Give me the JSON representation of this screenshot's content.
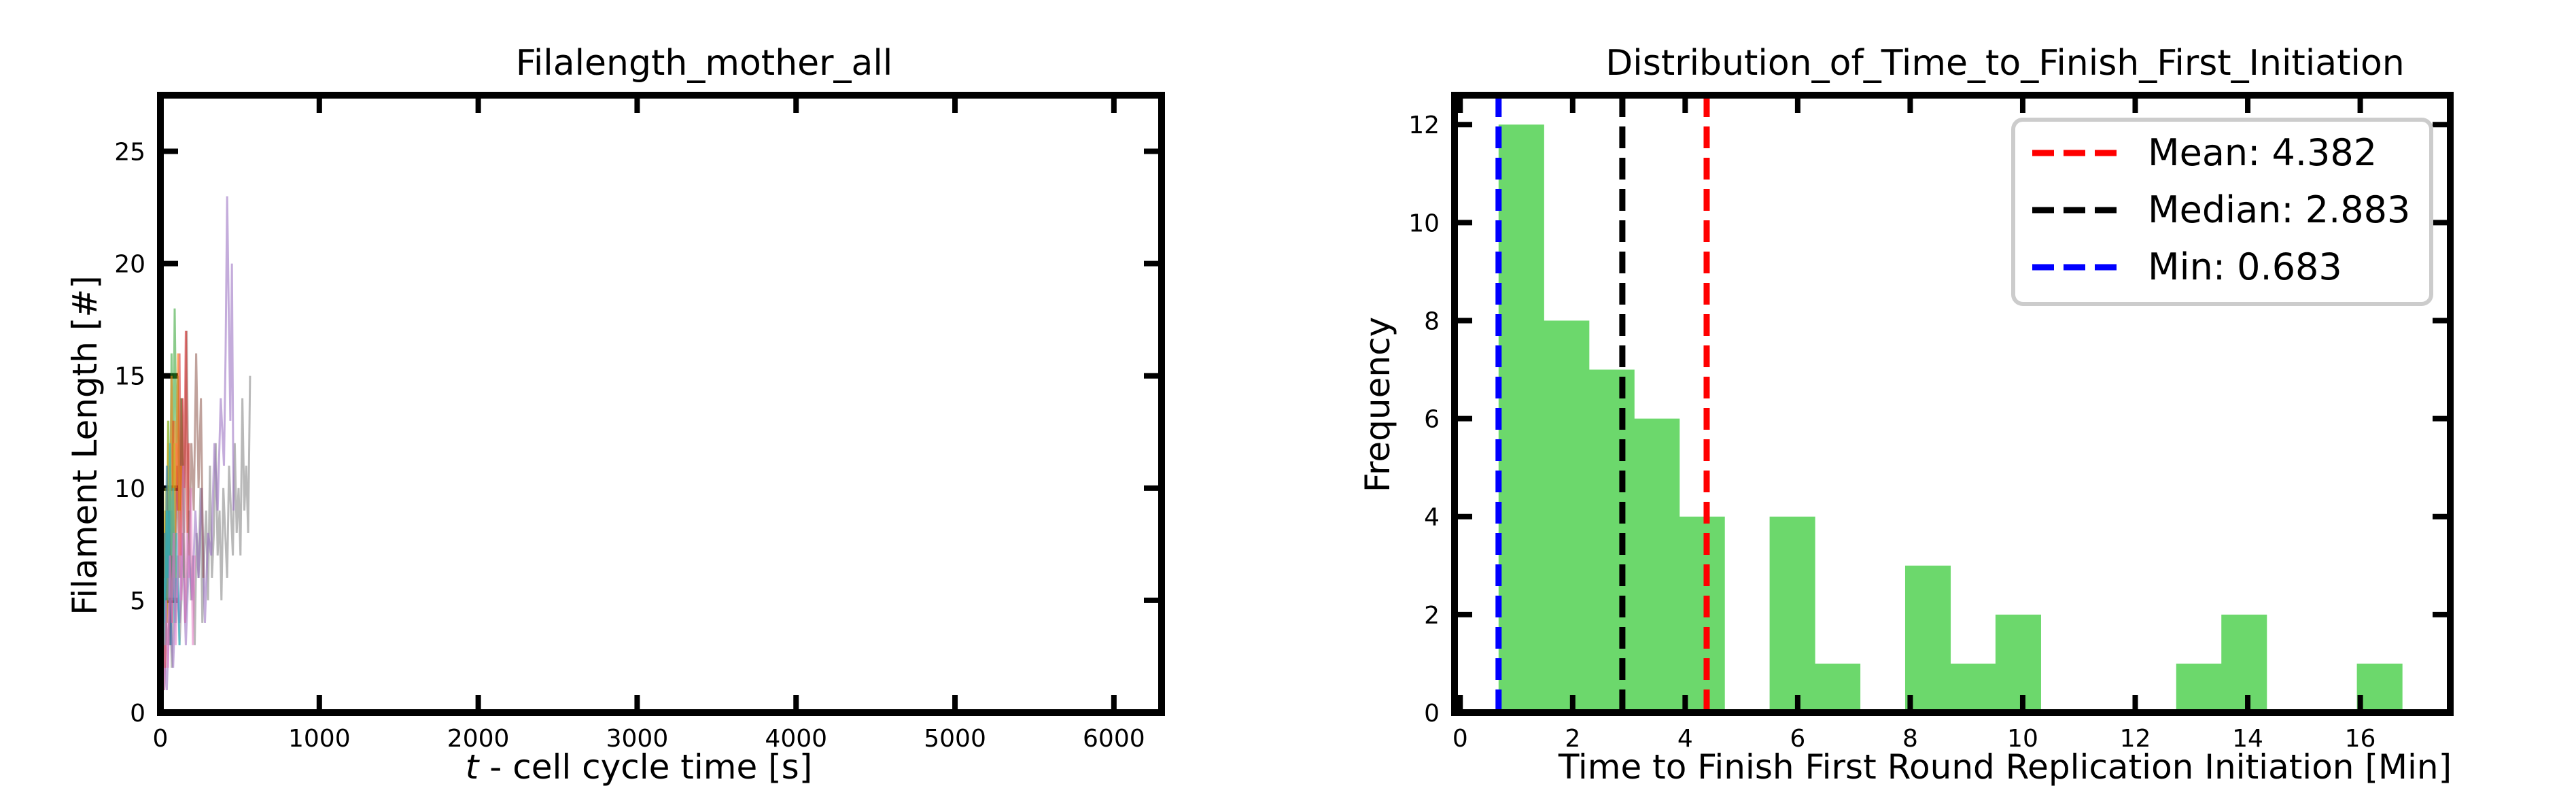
{
  "chart_data": [
    {
      "type": "line",
      "title": "Filalength_mother_all",
      "xlabel": "t - cell cycle time [s]",
      "xlabel_italic_part": "t",
      "xlabel_rest": " - cell cycle time [s]",
      "ylabel": "Filament Length [#]",
      "xlim": [
        0,
        6300
      ],
      "ylim": [
        0,
        27.5
      ],
      "x_ticks": [
        0,
        1000,
        2000,
        3000,
        4000,
        5000,
        6000
      ],
      "x_tick_labels": [
        "0",
        "1000",
        "2000",
        "3000",
        "4000",
        "5000",
        "6000"
      ],
      "y_ticks": [
        0,
        5,
        10,
        15,
        20,
        25
      ],
      "y_tick_labels": [
        "0",
        "5",
        "10",
        "15",
        "20",
        "25"
      ],
      "grid": false,
      "series": [
        {
          "color": "#7f7f7f",
          "x": [
            0,
            12,
            24,
            36,
            48,
            60,
            72,
            84,
            96,
            108,
            120,
            132,
            144,
            156,
            168,
            180,
            192,
            204,
            216,
            228,
            240,
            252,
            264,
            276,
            288,
            300,
            312,
            324,
            336,
            348,
            360,
            372,
            384,
            396,
            408,
            420,
            432,
            444,
            456,
            468,
            480,
            492,
            504,
            516,
            528,
            540,
            552,
            564
          ],
          "values": [
            0,
            2,
            1,
            4,
            3,
            5,
            2,
            6,
            4,
            7,
            3,
            5,
            8,
            4,
            6,
            9,
            5,
            7,
            3,
            8,
            6,
            10,
            4,
            7,
            9,
            5,
            11,
            6,
            8,
            12,
            7,
            9,
            5,
            10,
            8,
            6,
            11,
            9,
            7,
            12,
            8,
            10,
            7,
            14,
            9,
            11,
            8,
            15
          ]
        },
        {
          "color": "#9467bd",
          "x": [
            0,
            20,
            40,
            60,
            80,
            100,
            120,
            140,
            160,
            180,
            200,
            220,
            240,
            260,
            280,
            300,
            320,
            340,
            360,
            380,
            400,
            410,
            420,
            430,
            440,
            450,
            460
          ],
          "values": [
            0,
            3,
            1,
            5,
            2,
            6,
            4,
            8,
            3,
            7,
            5,
            9,
            6,
            10,
            4,
            8,
            7,
            12,
            9,
            14,
            11,
            16,
            23,
            18,
            13,
            20,
            9
          ]
        },
        {
          "color": "#8c564b",
          "x": [
            0,
            15,
            30,
            45,
            60,
            75,
            90,
            105,
            120,
            135,
            150,
            165,
            180,
            195,
            210,
            225,
            240,
            255,
            270
          ],
          "values": [
            0,
            4,
            2,
            7,
            3,
            9,
            5,
            11,
            6,
            14,
            8,
            17,
            7,
            12,
            9,
            16,
            10,
            14,
            6
          ]
        },
        {
          "color": "#2ca02c",
          "x": [
            0,
            10,
            20,
            30,
            40,
            50,
            60,
            70,
            80,
            90,
            100,
            110,
            120,
            130,
            140,
            150
          ],
          "values": [
            0,
            6,
            2,
            9,
            4,
            13,
            7,
            16,
            10,
            18,
            12,
            15,
            8,
            14,
            11,
            6
          ]
        },
        {
          "color": "#d62728",
          "x": [
            0,
            10,
            20,
            30,
            40,
            50,
            60,
            70,
            80,
            90,
            100,
            110,
            120,
            130,
            140,
            150,
            160,
            170,
            180
          ],
          "values": [
            0,
            3,
            7,
            2,
            8,
            5,
            11,
            4,
            13,
            6,
            12,
            9,
            16,
            7,
            14,
            10,
            17,
            8,
            12
          ]
        },
        {
          "color": "#ff7f0e",
          "x": [
            0,
            10,
            20,
            30,
            40,
            50,
            60,
            70,
            80,
            90,
            100,
            110,
            120,
            130
          ],
          "values": [
            0,
            5,
            2,
            9,
            4,
            12,
            6,
            15,
            8,
            13,
            10,
            16,
            7,
            11
          ]
        },
        {
          "color": "#bcbd22",
          "x": [
            0,
            8,
            16,
            24,
            32,
            40,
            48,
            56,
            64,
            72,
            80,
            88,
            96
          ],
          "values": [
            0,
            4,
            8,
            3,
            10,
            6,
            13,
            7,
            11,
            5,
            9,
            12,
            6
          ]
        },
        {
          "color": "#1f77b4",
          "x": [
            0,
            8,
            16,
            24,
            32,
            40,
            48,
            56,
            64,
            72,
            80
          ],
          "values": [
            0,
            5,
            2,
            8,
            4,
            11,
            6,
            9,
            3,
            7,
            5
          ]
        },
        {
          "color": "#17becf",
          "x": [
            0,
            10,
            20,
            30,
            40,
            50,
            60,
            70,
            80,
            90,
            100,
            110,
            120
          ],
          "values": [
            0,
            2,
            6,
            3,
            9,
            5,
            12,
            7,
            10,
            4,
            8,
            6,
            3
          ]
        },
        {
          "color": "#e377c2",
          "x": [
            0,
            12,
            24,
            36,
            48,
            60,
            72,
            84,
            96,
            108,
            120,
            132,
            144,
            156,
            168,
            180,
            192,
            204,
            216
          ],
          "values": [
            0,
            3,
            1,
            5,
            2,
            7,
            4,
            8,
            3,
            6,
            9,
            5,
            11,
            4,
            8,
            6,
            10,
            3,
            7
          ]
        }
      ]
    },
    {
      "type": "bar",
      "title": "Distribution_of_Time_to_Finish_First_Initiation",
      "xlabel": "Time to Finish First Round Replication Initiation [Min]",
      "ylabel": "Frequency",
      "xlim": [
        -0.1,
        17.6
      ],
      "ylim": [
        0,
        12.6
      ],
      "x_ticks": [
        0,
        2,
        4,
        6,
        8,
        10,
        12,
        14,
        16
      ],
      "x_tick_labels": [
        "0",
        "2",
        "4",
        "6",
        "8",
        "10",
        "12",
        "14",
        "16"
      ],
      "y_ticks": [
        0,
        2,
        4,
        6,
        8,
        10,
        12
      ],
      "y_tick_labels": [
        "0",
        "2",
        "4",
        "6",
        "8",
        "10",
        "12"
      ],
      "grid": false,
      "bar_color": "#6cd86c",
      "bins": [
        {
          "x0": 0.683,
          "x1": 1.486,
          "count": 12
        },
        {
          "x0": 1.486,
          "x1": 2.289,
          "count": 8
        },
        {
          "x0": 2.289,
          "x1": 3.092,
          "count": 7
        },
        {
          "x0": 3.092,
          "x1": 3.895,
          "count": 6
        },
        {
          "x0": 3.895,
          "x1": 4.698,
          "count": 4
        },
        {
          "x0": 4.698,
          "x1": 5.501,
          "count": 0
        },
        {
          "x0": 5.501,
          "x1": 6.304,
          "count": 4
        },
        {
          "x0": 6.304,
          "x1": 7.107,
          "count": 1
        },
        {
          "x0": 7.107,
          "x1": 7.91,
          "count": 0
        },
        {
          "x0": 7.91,
          "x1": 8.713,
          "count": 3
        },
        {
          "x0": 8.713,
          "x1": 9.516,
          "count": 1
        },
        {
          "x0": 9.516,
          "x1": 10.319,
          "count": 2
        },
        {
          "x0": 10.319,
          "x1": 11.122,
          "count": 0
        },
        {
          "x0": 11.122,
          "x1": 11.925,
          "count": 0
        },
        {
          "x0": 11.925,
          "x1": 12.728,
          "count": 0
        },
        {
          "x0": 12.728,
          "x1": 13.531,
          "count": 1
        },
        {
          "x0": 13.531,
          "x1": 14.334,
          "count": 2
        },
        {
          "x0": 14.334,
          "x1": 15.137,
          "count": 0
        },
        {
          "x0": 15.137,
          "x1": 15.94,
          "count": 0
        },
        {
          "x0": 15.94,
          "x1": 16.743,
          "count": 1
        }
      ],
      "vlines": [
        {
          "name": "Mean: 4.382",
          "x": 4.382,
          "color": "#ff0000"
        },
        {
          "name": "Median: 2.883",
          "x": 2.883,
          "color": "#000000"
        },
        {
          "name": "Min: 0.683",
          "x": 0.683,
          "color": "#0000ff"
        }
      ],
      "legend": {
        "position": "upper-right"
      }
    }
  ]
}
